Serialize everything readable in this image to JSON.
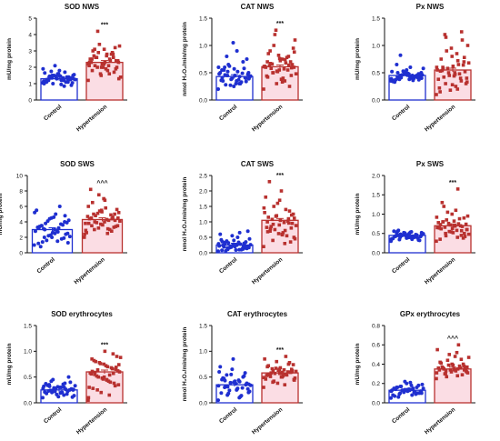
{
  "chart_data": [
    {
      "type": "bar",
      "title": "SOD NWS",
      "ylabel": "mU/mg protein",
      "ylim": [
        0,
        5
      ],
      "yticks": [
        "0",
        "1",
        "2",
        "3",
        "4",
        "5"
      ],
      "categories": [
        "Control",
        "Hypertension"
      ],
      "values": [
        1.3,
        2.3
      ],
      "significance": "***",
      "points": [
        [
          1.05,
          1.2,
          1.35,
          1.5,
          0.95,
          1.4,
          1.25,
          1.6,
          1.1,
          1.3,
          1.45,
          1.15,
          1.7,
          1.0,
          1.55,
          1.25,
          1.35,
          0.9,
          1.8,
          1.2,
          1.4,
          1.3,
          1.65,
          1.1,
          1.5,
          1.25,
          1.35,
          1.75,
          1.05,
          1.45,
          1.2,
          1.3,
          1.6,
          1.15,
          1.4,
          2.1,
          1.9,
          0.85,
          1.5,
          1.3,
          1.2,
          1.45,
          1.35,
          1.55,
          1.25,
          1.1,
          1.4,
          1.0
        ],
        [
          1.2,
          1.6,
          2.0,
          2.3,
          2.7,
          3.1,
          1.9,
          2.2,
          2.5,
          2.8,
          1.5,
          2.1,
          2.4,
          2.9,
          3.3,
          1.8,
          2.6,
          2.0,
          2.3,
          3.0,
          1.7,
          2.2,
          2.5,
          2.8,
          3.4,
          1.4,
          2.1,
          2.6,
          2.4,
          1.9,
          2.7,
          3.2,
          2.0,
          2.3,
          2.9,
          1.6,
          2.2,
          2.5,
          4.2,
          1.3,
          2.8,
          2.1,
          2.4,
          3.1,
          1.8,
          2.6,
          2.0,
          2.3
        ]
      ]
    },
    {
      "type": "bar",
      "title": "CAT NWS",
      "ylabel": "nmol H₂O₂/min/mg protein",
      "ylim": [
        0,
        1.5
      ],
      "yticks": [
        "0.0",
        "0.5",
        "1.0",
        "1.5"
      ],
      "categories": [
        "Control",
        "Hypertension"
      ],
      "values": [
        0.43,
        0.61
      ],
      "significance": "***",
      "points": [
        [
          0.2,
          0.3,
          0.45,
          0.5,
          0.35,
          0.6,
          0.4,
          0.25,
          0.55,
          0.7,
          0.38,
          0.48,
          0.3,
          0.65,
          0.42,
          0.52,
          0.28,
          0.75,
          0.45,
          0.35,
          0.58,
          0.4,
          0.5,
          0.33,
          0.62,
          0.44,
          0.37,
          0.8,
          0.47,
          0.3,
          0.55,
          0.41,
          1.05,
          0.36,
          0.49,
          0.27,
          0.6,
          0.43,
          0.52,
          0.39,
          0.9,
          0.46,
          0.34,
          0.57,
          0.41
        ],
        [
          0.2,
          0.35,
          0.5,
          0.6,
          0.75,
          0.9,
          0.45,
          0.55,
          0.7,
          0.8,
          0.3,
          0.62,
          0.68,
          1.0,
          1.1,
          0.4,
          0.58,
          0.65,
          0.72,
          0.85,
          0.25,
          0.52,
          0.6,
          0.78,
          1.2,
          0.48,
          0.57,
          0.66,
          0.95,
          0.38,
          0.63,
          0.7,
          0.82,
          0.44,
          0.55,
          1.28,
          0.61,
          0.74,
          0.5,
          0.88,
          0.33,
          0.67,
          0.59,
          0.76,
          0.42,
          0.64,
          0.53
        ]
      ]
    },
    {
      "type": "bar",
      "title": "Px NWS",
      "ylabel": "mU/mg protein",
      "ylim": [
        0,
        1.5
      ],
      "yticks": [
        "0.0",
        "0.5",
        "1.0",
        "1.5"
      ],
      "categories": [
        "Control",
        "Hypertension"
      ],
      "values": [
        0.45,
        0.55
      ],
      "significance": "",
      "points": [
        [
          0.35,
          0.4,
          0.45,
          0.5,
          0.38,
          0.42,
          0.48,
          0.55,
          0.33,
          0.44,
          0.47,
          0.52,
          0.36,
          0.41,
          0.46,
          0.6,
          0.39,
          0.43,
          0.49,
          0.37,
          0.45,
          0.51,
          0.34,
          0.4,
          0.46,
          0.58,
          0.42,
          0.38,
          0.44,
          0.48,
          0.65,
          0.41,
          0.47,
          0.36,
          0.43,
          0.53,
          0.39,
          0.45,
          0.82,
          0.4,
          0.44,
          0.5,
          0.37,
          0.46
        ],
        [
          0.1,
          0.2,
          0.3,
          0.4,
          0.5,
          0.6,
          0.7,
          0.8,
          0.15,
          0.35,
          0.45,
          0.55,
          0.65,
          0.9,
          1.0,
          0.25,
          0.42,
          0.52,
          0.62,
          0.75,
          1.1,
          0.18,
          0.38,
          0.48,
          0.58,
          0.68,
          0.85,
          1.2,
          0.3,
          0.44,
          0.54,
          0.64,
          0.95,
          0.22,
          0.4,
          0.5,
          0.6,
          0.72,
          1.15,
          0.33,
          0.47,
          0.57,
          0.78,
          0.28,
          0.53,
          1.25
        ]
      ]
    },
    {
      "type": "bar",
      "title": "SOD SWS",
      "ylabel": "mU/mg protein",
      "ylim": [
        0,
        10
      ],
      "yticks": [
        "0",
        "2",
        "4",
        "6",
        "8",
        "10"
      ],
      "categories": [
        "Control",
        "Hypertension"
      ],
      "values": [
        3.0,
        4.3
      ],
      "significance": "^^^",
      "points": [
        [
          1.0,
          1.5,
          2.0,
          2.5,
          3.0,
          3.5,
          4.0,
          4.5,
          1.2,
          1.8,
          2.2,
          2.8,
          3.2,
          3.8,
          4.2,
          5.0,
          1.4,
          2.4,
          2.6,
          3.4,
          3.6,
          4.4,
          5.5,
          6.0,
          1.6,
          2.1,
          2.9,
          3.1,
          3.9,
          4.6,
          0.8,
          1.9,
          2.3,
          3.3,
          3.7,
          4.1,
          5.2,
          2.7,
          3.0,
          1.3,
          2.5,
          3.5,
          4.8,
          2.0,
          3.2
        ],
        [
          2.0,
          2.5,
          3.0,
          3.5,
          4.0,
          4.5,
          5.0,
          5.5,
          6.0,
          2.8,
          3.2,
          3.8,
          4.2,
          4.8,
          5.2,
          5.8,
          6.5,
          3.4,
          3.6,
          4.4,
          4.6,
          5.4,
          2.6,
          3.0,
          3.9,
          4.1,
          4.3,
          5.0,
          5.6,
          7.0,
          8.2,
          3.3,
          3.7,
          4.7,
          4.9,
          5.1,
          2.4,
          3.1,
          4.0,
          4.5,
          6.8,
          3.5,
          4.2,
          5.3,
          3.8,
          4.4,
          7.5,
          2.9
        ]
      ]
    },
    {
      "type": "bar",
      "title": "CAT SWS",
      "ylabel": "nmol H₂O₂/min/mg protein",
      "ylim": [
        0,
        2.5
      ],
      "yticks": [
        "0.0",
        "0.5",
        "1.0",
        "1.5",
        "2.0",
        "2.5"
      ],
      "categories": [
        "Control",
        "Hypertension"
      ],
      "values": [
        0.25,
        1.05
      ],
      "significance": "***",
      "points": [
        [
          0.05,
          0.1,
          0.15,
          0.2,
          0.25,
          0.3,
          0.35,
          0.4,
          0.08,
          0.12,
          0.18,
          0.22,
          0.28,
          0.32,
          0.45,
          0.5,
          0.06,
          0.14,
          0.2,
          0.24,
          0.3,
          0.55,
          0.6,
          0.1,
          0.16,
          0.26,
          0.34,
          0.38,
          0.7,
          0.09,
          0.19,
          0.23,
          0.27,
          0.42,
          0.13,
          0.21,
          0.29,
          0.65,
          0.11,
          0.17,
          0.25,
          0.33,
          0.15,
          0.22,
          0.36,
          0.2
        ],
        [
          0.2,
          0.3,
          0.4,
          0.5,
          0.6,
          0.7,
          0.8,
          0.9,
          1.0,
          1.1,
          1.2,
          1.3,
          1.4,
          1.5,
          0.45,
          0.65,
          0.85,
          0.95,
          1.05,
          1.15,
          1.35,
          1.6,
          1.8,
          0.55,
          0.75,
          0.88,
          0.98,
          1.08,
          1.25,
          2.0,
          2.3,
          0.35,
          0.62,
          0.82,
          1.02,
          1.18,
          1.45,
          0.72,
          0.92,
          1.12,
          0.58,
          0.78,
          1.22,
          1.7,
          0.68,
          0.96
        ]
      ]
    },
    {
      "type": "bar",
      "title": "Px SWS",
      "ylabel": "mU/mg protein",
      "ylim": [
        0,
        2.0
      ],
      "yticks": [
        "0.0",
        "0.5",
        "1.0",
        "1.5",
        "2.0"
      ],
      "categories": [
        "Control",
        "Hypertension"
      ],
      "values": [
        0.45,
        0.7
      ],
      "significance": "***",
      "points": [
        [
          0.3,
          0.35,
          0.4,
          0.45,
          0.5,
          0.55,
          0.33,
          0.38,
          0.42,
          0.47,
          0.52,
          0.36,
          0.41,
          0.44,
          0.48,
          0.53,
          0.58,
          0.32,
          0.39,
          0.43,
          0.46,
          0.51,
          0.37,
          0.4,
          0.45,
          0.49,
          0.54,
          0.34,
          0.42,
          0.47,
          0.5,
          0.38,
          0.44,
          0.56,
          0.41,
          0.46,
          0.35,
          0.43,
          0.48,
          0.52,
          0.4,
          0.45
        ],
        [
          0.3,
          0.4,
          0.5,
          0.6,
          0.7,
          0.8,
          0.9,
          1.0,
          0.35,
          0.45,
          0.55,
          0.65,
          0.75,
          0.85,
          0.95,
          1.1,
          1.2,
          0.42,
          0.52,
          0.62,
          0.68,
          0.72,
          0.78,
          0.88,
          1.05,
          0.48,
          0.58,
          0.66,
          0.74,
          0.82,
          1.3,
          0.38,
          0.54,
          0.64,
          0.7,
          0.76,
          0.92,
          1.65,
          0.44,
          0.6,
          0.69,
          0.8,
          0.5,
          0.63,
          0.73,
          0.57
        ]
      ]
    },
    {
      "type": "bar",
      "title": "SOD erythrocytes",
      "ylabel": "mU/mg protein",
      "ylim": [
        0,
        1.5
      ],
      "yticks": [
        "0.0",
        "0.5",
        "1.0",
        "1.5"
      ],
      "categories": [
        "Control",
        "Hypertension"
      ],
      "values": [
        0.25,
        0.6
      ],
      "significance": "***",
      "points": [
        [
          0.1,
          0.15,
          0.2,
          0.25,
          0.3,
          0.35,
          0.4,
          0.12,
          0.18,
          0.22,
          0.28,
          0.32,
          0.38,
          0.45,
          0.14,
          0.2,
          0.24,
          0.27,
          0.3,
          0.34,
          0.5,
          0.16,
          0.21,
          0.26,
          0.29,
          0.33,
          0.36,
          0.42,
          0.11,
          0.19,
          0.23,
          0.25,
          0.31,
          0.37,
          0.17,
          0.22,
          0.28,
          0.3,
          0.24,
          0.26,
          0.2,
          0.32
        ],
        [
          0.05,
          0.15,
          0.25,
          0.35,
          0.45,
          0.55,
          0.65,
          0.75,
          0.85,
          0.95,
          0.2,
          0.3,
          0.4,
          0.5,
          0.6,
          0.7,
          0.8,
          0.9,
          1.0,
          0.28,
          0.38,
          0.48,
          0.58,
          0.68,
          0.78,
          0.88,
          0.42,
          0.52,
          0.62,
          0.72,
          0.82,
          0.33,
          0.46,
          0.56,
          0.66,
          0.76,
          0.1,
          0.54,
          0.64,
          0.74,
          0.44,
          0.59,
          0.69,
          0.5,
          0.61,
          0.57
        ]
      ]
    },
    {
      "type": "bar",
      "title": "CAT erythrocytes",
      "ylabel": "nmol H₂O₂/min/mg protein",
      "ylim": [
        0,
        1.5
      ],
      "yticks": [
        "0.0",
        "0.5",
        "1.0",
        "1.5"
      ],
      "categories": [
        "Control",
        "Hypertension"
      ],
      "values": [
        0.35,
        0.58
      ],
      "significance": "***",
      "points": [
        [
          0.05,
          0.1,
          0.15,
          0.2,
          0.25,
          0.3,
          0.35,
          0.4,
          0.45,
          0.5,
          0.55,
          0.6,
          0.12,
          0.18,
          0.22,
          0.28,
          0.32,
          0.38,
          0.42,
          0.48,
          0.52,
          0.65,
          0.7,
          0.14,
          0.24,
          0.34,
          0.44,
          0.54,
          0.27,
          0.37,
          0.47,
          0.58,
          0.85,
          0.19,
          0.29,
          0.39,
          0.33,
          0.41,
          0.31,
          0.36,
          0.26,
          0.43
        ],
        [
          0.3,
          0.35,
          0.4,
          0.45,
          0.5,
          0.55,
          0.6,
          0.65,
          0.7,
          0.75,
          0.8,
          0.85,
          0.9,
          0.42,
          0.48,
          0.52,
          0.58,
          0.62,
          0.68,
          0.72,
          0.78,
          0.38,
          0.46,
          0.54,
          0.57,
          0.61,
          0.64,
          0.66,
          0.74,
          0.5,
          0.56,
          0.59,
          0.63,
          0.53,
          0.6,
          0.67,
          0.49,
          0.55,
          0.62,
          0.44,
          0.58,
          0.51,
          0.65,
          0.57,
          0.54
        ]
      ]
    },
    {
      "type": "bar",
      "title": "GPx erythrocytes",
      "ylabel": "mU/mg protein",
      "ylim": [
        0,
        0.8
      ],
      "yticks": [
        "0.0",
        "0.2",
        "0.4",
        "0.6",
        "0.8"
      ],
      "categories": [
        "Control",
        "Hypertension"
      ],
      "values": [
        0.13,
        0.35
      ],
      "significance": "^^^",
      "points": [
        [
          0.05,
          0.08,
          0.1,
          0.12,
          0.14,
          0.16,
          0.18,
          0.2,
          0.07,
          0.09,
          0.11,
          0.13,
          0.15,
          0.17,
          0.19,
          0.21,
          0.06,
          0.1,
          0.12,
          0.14,
          0.16,
          0.22,
          0.08,
          0.11,
          0.13,
          0.15,
          0.18,
          0.09,
          0.12,
          0.14,
          0.16,
          0.1,
          0.13,
          0.15,
          0.11,
          0.13,
          0.12,
          0.14,
          0.17,
          0.1,
          0.13
        ],
        [
          0.25,
          0.28,
          0.3,
          0.32,
          0.34,
          0.36,
          0.38,
          0.4,
          0.42,
          0.45,
          0.5,
          0.55,
          0.6,
          0.27,
          0.31,
          0.33,
          0.35,
          0.37,
          0.39,
          0.41,
          0.29,
          0.34,
          0.36,
          0.38,
          0.44,
          0.47,
          0.52,
          0.3,
          0.33,
          0.35,
          0.37,
          0.4,
          0.32,
          0.34,
          0.36,
          0.39,
          0.31,
          0.35,
          0.33,
          0.37,
          0.48,
          0.36,
          0.34
        ]
      ]
    }
  ]
}
